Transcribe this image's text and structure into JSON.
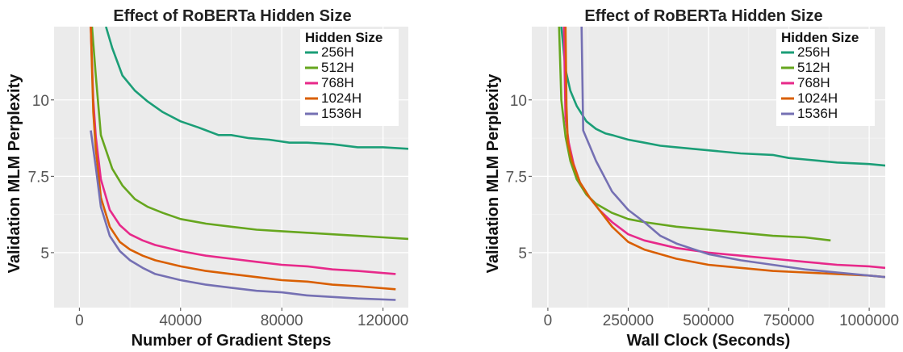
{
  "chart_data": [
    {
      "type": "line",
      "title": "Effect of RoBERTa Hidden Size",
      "xlabel": "Number of Gradient Steps",
      "ylabel": "Validation MLM Perplexity",
      "xlim": [
        -10000,
        130000
      ],
      "ylim": [
        3.2,
        12.4
      ],
      "xticks": [
        0,
        40000,
        80000,
        120000
      ],
      "xtick_labels": [
        "0",
        "40000",
        "80000",
        "120000"
      ],
      "yticks": [
        5,
        7.5,
        10
      ],
      "ytick_labels": [
        "5",
        "7.5",
        "10"
      ],
      "grid": true,
      "legend_title": "Hidden Size",
      "legend_position": "top-right",
      "series": [
        {
          "name": "256H",
          "color": "#1b9e77",
          "x": [
            10500,
            13000,
            17000,
            22000,
            27000,
            33000,
            40000,
            47000,
            55000,
            60000,
            67000,
            75000,
            83000,
            90000,
            100000,
            110000,
            120000,
            130000
          ],
          "y": [
            12.4,
            11.7,
            10.8,
            10.3,
            9.95,
            9.6,
            9.3,
            9.1,
            8.85,
            8.85,
            8.75,
            8.7,
            8.6,
            8.6,
            8.55,
            8.45,
            8.45,
            8.4
          ]
        },
        {
          "name": "512H",
          "color": "#66a61e",
          "x": [
            5000,
            6500,
            8500,
            13000,
            17000,
            22000,
            27000,
            33000,
            40000,
            50000,
            60000,
            70000,
            80000,
            90000,
            100000,
            110000,
            120000,
            130000
          ],
          "y": [
            12.4,
            10.8,
            8.85,
            7.75,
            7.2,
            6.75,
            6.5,
            6.3,
            6.1,
            5.95,
            5.85,
            5.75,
            5.7,
            5.65,
            5.6,
            5.55,
            5.5,
            5.45
          ]
        },
        {
          "name": "768H",
          "color": "#e7298a",
          "x": [
            4500,
            5500,
            6500,
            8500,
            12000,
            16000,
            20000,
            25000,
            30000,
            40000,
            50000,
            60000,
            70000,
            80000,
            90000,
            100000,
            110000,
            125000
          ],
          "y": [
            12.4,
            10.0,
            8.8,
            7.4,
            6.4,
            5.9,
            5.6,
            5.4,
            5.25,
            5.05,
            4.9,
            4.8,
            4.7,
            4.6,
            4.55,
            4.45,
            4.4,
            4.3
          ]
        },
        {
          "name": "1024H",
          "color": "#d95f02",
          "x": [
            4500,
            5500,
            6500,
            8500,
            12000,
            16000,
            20000,
            25000,
            30000,
            40000,
            50000,
            60000,
            70000,
            80000,
            90000,
            100000,
            110000,
            125000
          ],
          "y": [
            12.4,
            9.6,
            8.4,
            6.8,
            5.85,
            5.35,
            5.1,
            4.9,
            4.75,
            4.55,
            4.4,
            4.3,
            4.2,
            4.1,
            4.05,
            3.95,
            3.9,
            3.8
          ]
        },
        {
          "name": "1536H",
          "color": "#7570b3",
          "x": [
            4500,
            6500,
            8500,
            12000,
            16000,
            20000,
            25000,
            30000,
            40000,
            50000,
            60000,
            70000,
            80000,
            90000,
            100000,
            110000,
            125000
          ],
          "y": [
            9.0,
            7.8,
            6.5,
            5.55,
            5.05,
            4.75,
            4.5,
            4.3,
            4.1,
            3.95,
            3.85,
            3.75,
            3.7,
            3.6,
            3.55,
            3.5,
            3.45
          ]
        }
      ]
    },
    {
      "type": "line",
      "title": "Effect of RoBERTa Hidden Size",
      "xlabel": "Wall Clock (Seconds)",
      "ylabel": "Validation MLM Perplexity",
      "xlim": [
        -50000,
        1050000
      ],
      "ylim": [
        3.2,
        12.4
      ],
      "xticks": [
        0,
        250000,
        500000,
        750000,
        1000000
      ],
      "xtick_labels": [
        "0",
        "250000",
        "500000",
        "750000",
        "1000000"
      ],
      "yticks": [
        5,
        7.5,
        10
      ],
      "ytick_labels": [
        "5",
        "7.5",
        "10"
      ],
      "grid": true,
      "legend_title": "Hidden Size",
      "legend_position": "top-right",
      "series": [
        {
          "name": "256H",
          "color": "#1b9e77",
          "x": [
            42000,
            55000,
            70000,
            90000,
            120000,
            150000,
            180000,
            200000,
            250000,
            300000,
            350000,
            400000,
            450000,
            500000,
            600000,
            700000,
            750000,
            800000,
            900000,
            1000000,
            1050000
          ],
          "y": [
            12.4,
            11.0,
            10.3,
            9.8,
            9.3,
            9.05,
            8.9,
            8.85,
            8.7,
            8.6,
            8.5,
            8.45,
            8.4,
            8.35,
            8.25,
            8.2,
            8.1,
            8.05,
            7.95,
            7.9,
            7.85
          ]
        },
        {
          "name": "512H",
          "color": "#66a61e",
          "x": [
            35000,
            42000,
            55000,
            70000,
            90000,
            120000,
            150000,
            200000,
            250000,
            300000,
            400000,
            500000,
            600000,
            700000,
            800000,
            880000
          ],
          "y": [
            12.4,
            10.0,
            8.8,
            8.0,
            7.4,
            6.9,
            6.6,
            6.3,
            6.1,
            6.0,
            5.85,
            5.75,
            5.65,
            5.55,
            5.5,
            5.4
          ]
        },
        {
          "name": "768H",
          "color": "#e7298a",
          "x": [
            50000,
            55000,
            65000,
            80000,
            100000,
            130000,
            160000,
            200000,
            250000,
            300000,
            400000,
            500000,
            600000,
            700000,
            800000,
            900000,
            1000000,
            1050000
          ],
          "y": [
            12.4,
            9.4,
            8.6,
            7.9,
            7.3,
            6.8,
            6.4,
            6.0,
            5.6,
            5.4,
            5.15,
            5.0,
            4.9,
            4.8,
            4.7,
            4.6,
            4.55,
            4.5
          ]
        },
        {
          "name": "1024H",
          "color": "#d95f02",
          "x": [
            55000,
            58000,
            62000,
            75000,
            100000,
            130000,
            160000,
            200000,
            250000,
            300000,
            400000,
            500000,
            600000,
            700000,
            800000,
            900000,
            1000000,
            1050000
          ],
          "y": [
            12.4,
            9.8,
            8.6,
            8.0,
            7.3,
            6.8,
            6.4,
            5.85,
            5.35,
            5.1,
            4.8,
            4.6,
            4.5,
            4.4,
            4.35,
            4.3,
            4.25,
            4.2
          ]
        },
        {
          "name": "1536H",
          "color": "#7570b3",
          "x": [
            105000,
            110000,
            130000,
            150000,
            200000,
            250000,
            300000,
            350000,
            400000,
            500000,
            600000,
            700000,
            800000,
            900000,
            1000000,
            1050000
          ],
          "y": [
            12.4,
            9.0,
            8.5,
            8.0,
            7.0,
            6.4,
            6.0,
            5.55,
            5.3,
            4.95,
            4.75,
            4.6,
            4.45,
            4.35,
            4.25,
            4.2
          ]
        }
      ]
    }
  ]
}
